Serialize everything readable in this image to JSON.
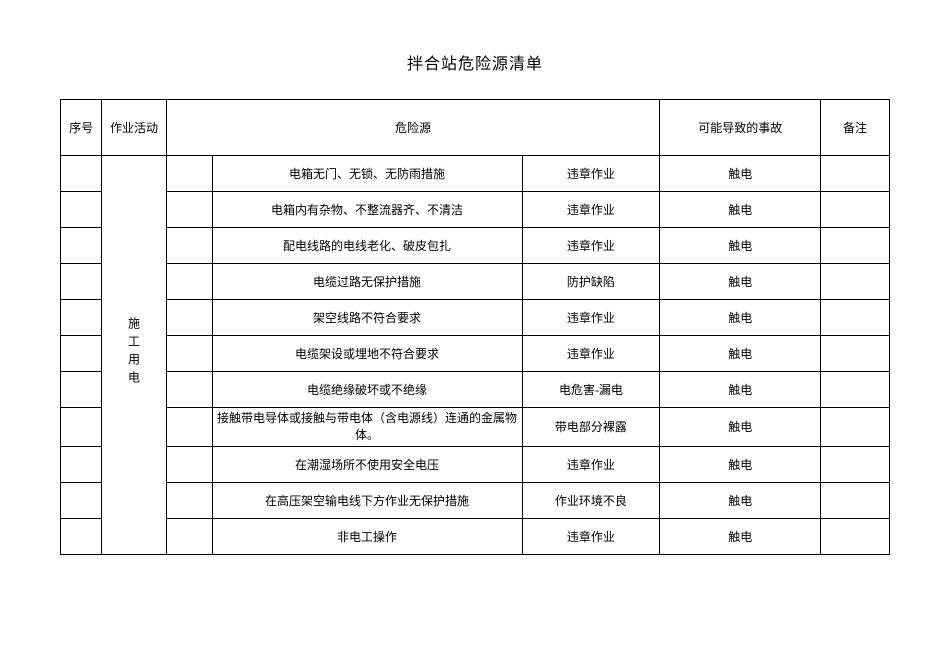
{
  "title": "拌合站危险源清单",
  "headers": {
    "seq": "序号",
    "activity": "作业活动",
    "hazard": "危险源",
    "accident": "可能导致的事故",
    "remark": "备注"
  },
  "activity_label": "施工用电",
  "rows": [
    {
      "desc": "电箱无门、无锁、无防雨措施",
      "type": "违章作业",
      "accident": "触电"
    },
    {
      "desc": "电箱内有杂物、不整流器齐、不清洁",
      "type": "违章作业",
      "accident": "触电"
    },
    {
      "desc": "配电线路的电线老化、破皮包扎",
      "type": "违章作业",
      "accident": "触电"
    },
    {
      "desc": "电缆过路无保护措施",
      "type": "防护缺陷",
      "accident": "触电"
    },
    {
      "desc": "架空线路不符合要求",
      "type": "违章作业",
      "accident": "触电"
    },
    {
      "desc": "电缆架设或埋地不符合要求",
      "type": "违章作业",
      "accident": "触电"
    },
    {
      "desc": "电缆绝缘破坏或不绝缘",
      "type": "电危害-漏电",
      "accident": "触电"
    },
    {
      "desc": "接触带电导体或接触与带电体（含电源线）连通的金属物体。",
      "type": "带电部分裸露",
      "accident": "触电"
    },
    {
      "desc": "在潮湿场所不使用安全电压",
      "type": "违章作业",
      "accident": "触电"
    },
    {
      "desc": "在高压架空输电线下方作业无保护措施",
      "type": "作业环境不良",
      "accident": "触电"
    },
    {
      "desc": "非电工操作",
      "type": "违章作业",
      "accident": "触电"
    }
  ]
}
